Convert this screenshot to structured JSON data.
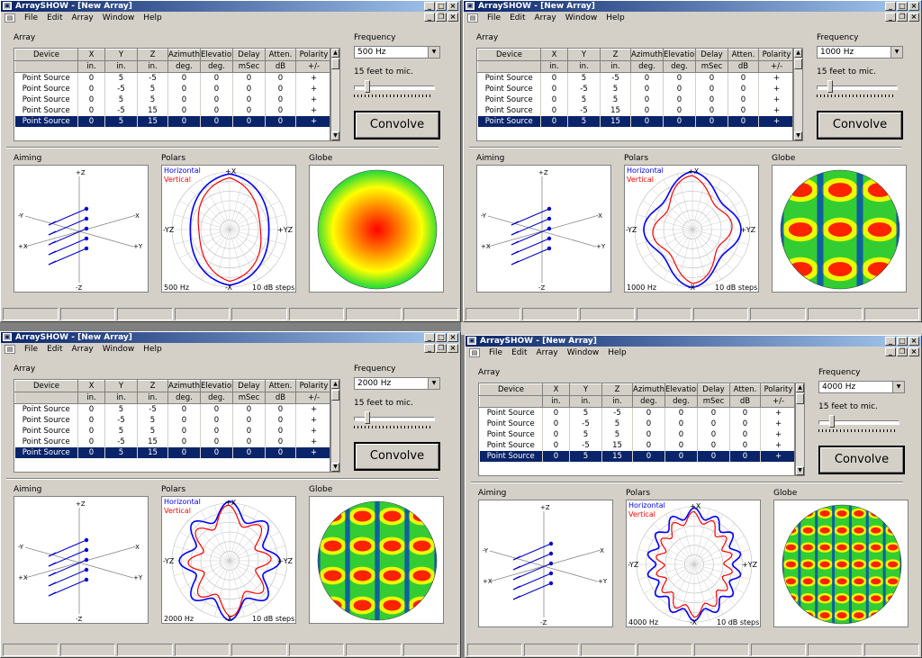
{
  "app_title": "ArraySHOW - [New Array]",
  "menu": [
    "File",
    "Edit",
    "Array",
    "Window",
    "Help"
  ],
  "labels": {
    "array": "Array",
    "frequency": "Frequency",
    "distance": "15 feet to mic.",
    "convolve": "Convolve",
    "aiming": "Aiming",
    "polars": "Polars",
    "globe": "Globe",
    "horizontal": "Horizontal",
    "vertical": "Vertical",
    "steps": "10 dB steps",
    "pol_top": "+X",
    "pol_bottom": "-X",
    "pol_left": "-YZ",
    "pol_right": "+YZ",
    "aim_pz": "+Z",
    "aim_mz": "-Z",
    "aim_my": "-Y",
    "aim_mx": "-X",
    "aim_px": "+X",
    "aim_py": "+Y"
  },
  "table": {
    "headers": [
      "Device",
      "X",
      "Y",
      "Z",
      "Azimuth",
      "Elevation",
      "Delay",
      "Atten.",
      "Polarity"
    ],
    "units": [
      "",
      "in.",
      "in.",
      "in.",
      "deg.",
      "deg.",
      "mSec",
      "dB",
      "+/-"
    ],
    "rows": [
      [
        "Point Source",
        "0",
        "5",
        "-5",
        "0",
        "0",
        "0",
        "0",
        "+"
      ],
      [
        "Point Source",
        "0",
        "-5",
        "5",
        "0",
        "0",
        "0",
        "0",
        "+"
      ],
      [
        "Point Source",
        "0",
        "5",
        "5",
        "0",
        "0",
        "0",
        "0",
        "+"
      ],
      [
        "Point Source",
        "0",
        "-5",
        "15",
        "0",
        "0",
        "0",
        "0",
        "+"
      ],
      [
        "Point Source",
        "0",
        "5",
        "15",
        "0",
        "0",
        "0",
        "0",
        "+"
      ]
    ]
  },
  "windows": [
    {
      "frequency": "500 Hz",
      "polar_freq": "500 Hz"
    },
    {
      "frequency": "1000 Hz",
      "polar_freq": "1000 Hz"
    },
    {
      "frequency": "2000 Hz",
      "polar_freq": "2000 Hz"
    },
    {
      "frequency": "4000 Hz",
      "polar_freq": "4000 Hz"
    }
  ],
  "colors": {
    "titlebar": "#0a246a",
    "selection": "#0a246a",
    "horizontal": "#0000ff",
    "vertical": "#ff0000",
    "aim": "#0000cc"
  }
}
